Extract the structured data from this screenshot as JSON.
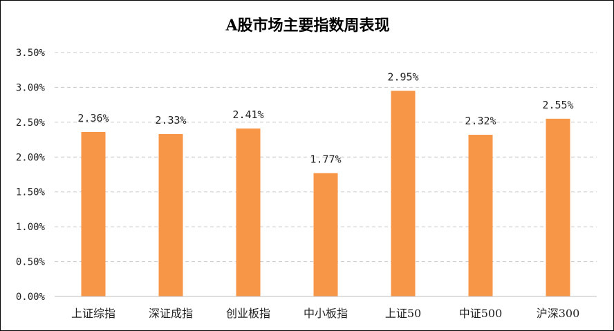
{
  "chart_data": {
    "type": "bar",
    "title": "A股市场主要指数周表现",
    "categories": [
      "上证综指",
      "深证成指",
      "创业板指",
      "中小板指",
      "上证50",
      "中证500",
      "沪深300"
    ],
    "values": [
      2.36,
      2.33,
      2.41,
      1.77,
      2.95,
      2.32,
      2.55
    ],
    "data_labels": [
      "2.36%",
      "2.33%",
      "2.41%",
      "1.77%",
      "2.95%",
      "2.32%",
      "2.55%"
    ],
    "yticks": [
      0,
      0.5,
      1.0,
      1.5,
      2.0,
      2.5,
      3.0,
      3.5
    ],
    "ytick_labels": [
      "0.00%",
      "0.50%",
      "1.00%",
      "1.50%",
      "2.00%",
      "2.50%",
      "3.00%",
      "3.50%"
    ],
    "ylim": [
      0,
      3.5
    ],
    "xlabel": "",
    "ylabel": "",
    "grid": true,
    "legend": "none",
    "bar_color": "#F79646"
  }
}
